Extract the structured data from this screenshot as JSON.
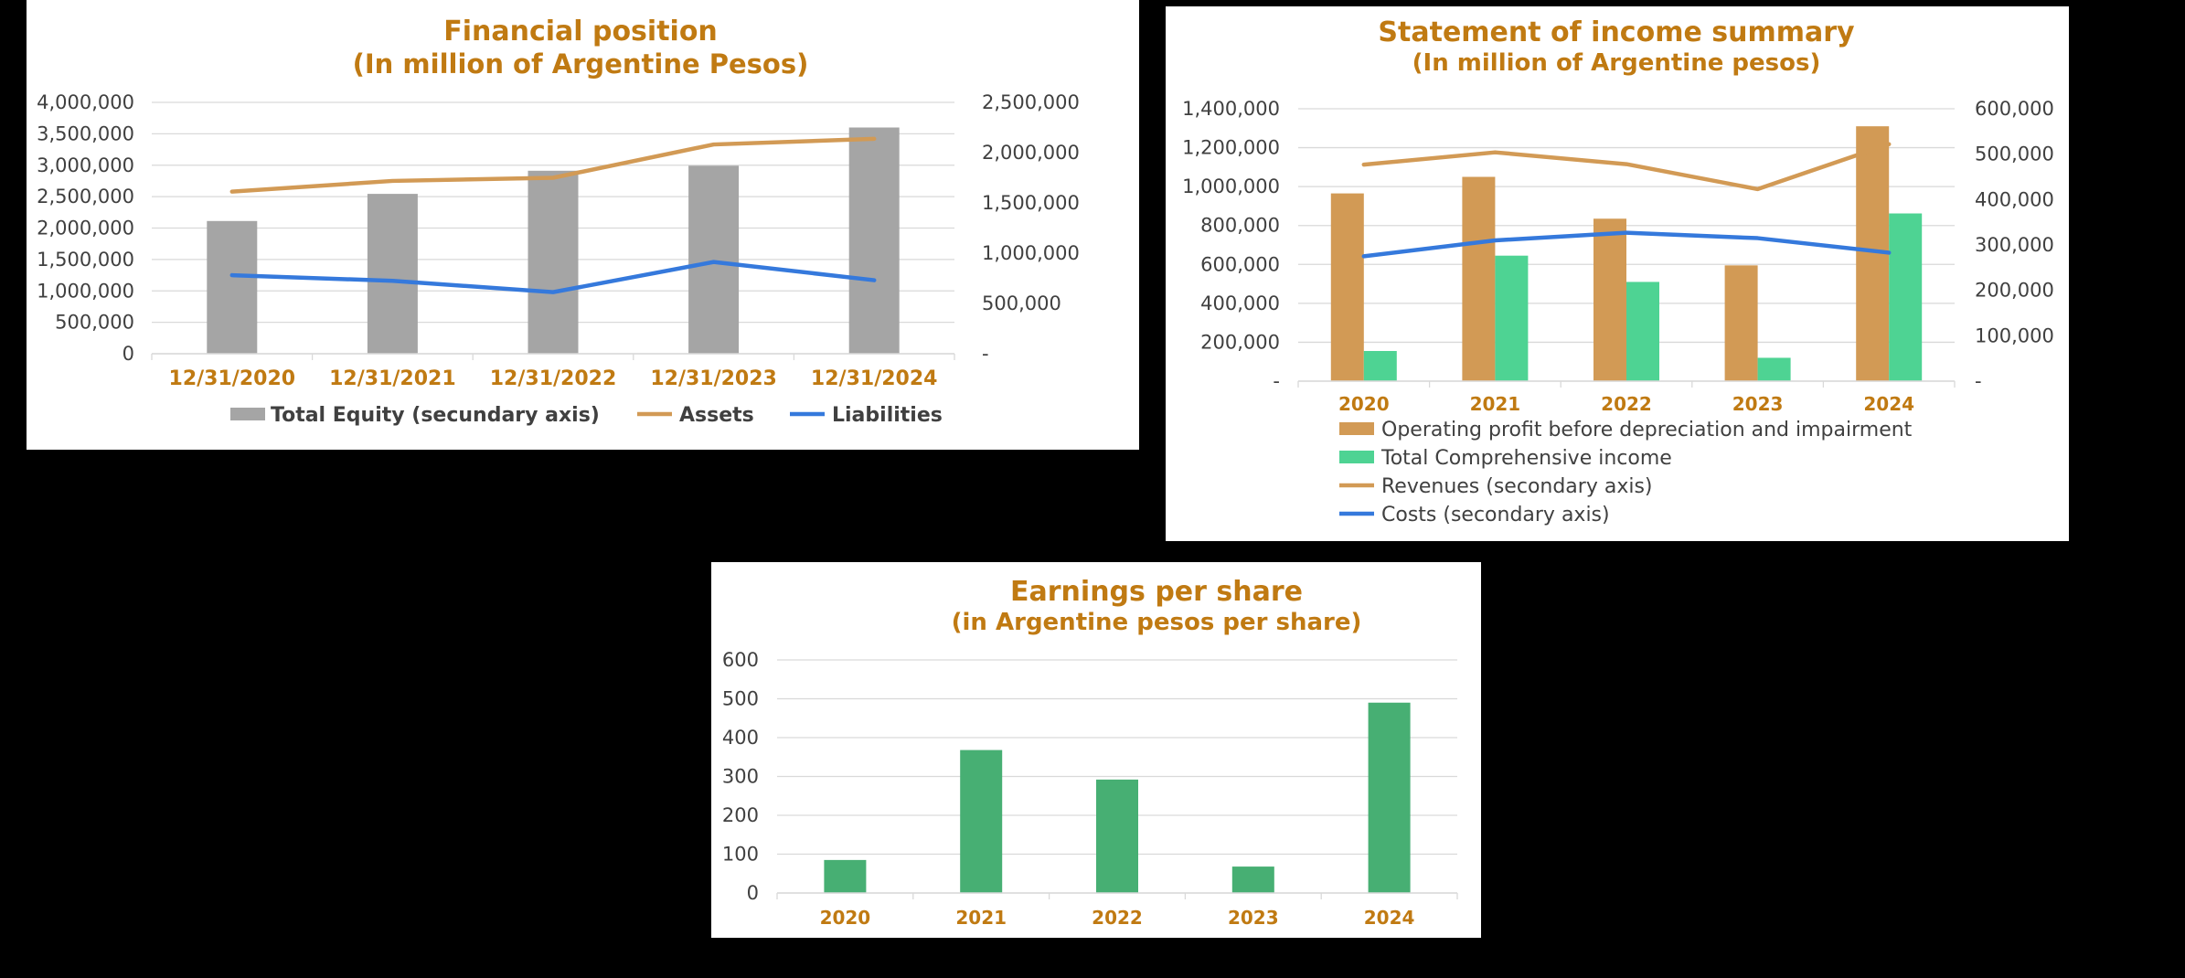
{
  "chart_data": [
    {
      "type": "bar",
      "title": "Financial position",
      "subtitle": "(In million of Argentine Pesos)",
      "categories": [
        "12/31/2020",
        "12/31/2021",
        "12/31/2022",
        "12/31/2023",
        "12/31/2024"
      ],
      "ylim": [
        0,
        4000000
      ],
      "y_ticks": [
        "0",
        "500,000",
        "1,000,000",
        "1,500,000",
        "2,000,000",
        "2,500,000",
        "3,000,000",
        "3,500,000",
        "4,000,000"
      ],
      "y2lim": [
        0,
        2500000
      ],
      "y2_ticks": [
        "-",
        "500,000",
        "1,000,000",
        "1,500,000",
        "2,000,000",
        "2,500,000"
      ],
      "grid": true,
      "legend_position": "bottom",
      "series": [
        {
          "name": "Total Equity (secundary axis)",
          "kind": "bar",
          "axis": "secondary",
          "color": "#A5A5A5",
          "values": [
            1320000,
            1590000,
            1820000,
            1870000,
            2250000
          ]
        },
        {
          "name": "Assets",
          "kind": "line",
          "axis": "primary",
          "color": "#D29A55",
          "values": [
            2580000,
            2750000,
            2800000,
            3330000,
            3420000
          ]
        },
        {
          "name": "Liabilities",
          "kind": "line",
          "axis": "primary",
          "color": "#3579DC",
          "values": [
            1250000,
            1160000,
            980000,
            1460000,
            1170000
          ]
        }
      ]
    },
    {
      "type": "bar",
      "title": "Statement of income summary",
      "subtitle": "(In million of Argentine pesos)",
      "categories": [
        "2020",
        "2021",
        "2022",
        "2023",
        "2024"
      ],
      "ylim": [
        0,
        1400000
      ],
      "y_ticks": [
        "-",
        "200,000",
        "400,000",
        "600,000",
        "800,000",
        "1,000,000",
        "1,200,000",
        "1,400,000"
      ],
      "y2lim": [
        0,
        600000
      ],
      "y2_ticks": [
        "-",
        "100,000",
        "200,000",
        "300,000",
        "400,000",
        "500,000",
        "600,000"
      ],
      "grid": true,
      "legend_position": "bottom",
      "series": [
        {
          "name": "Operating profit before depreciation and impairment",
          "kind": "bar",
          "axis": "primary",
          "color": "#D29A55",
          "values": [
            965000,
            1050000,
            835000,
            595000,
            1310000
          ]
        },
        {
          "name": "Total Comprehensive income",
          "kind": "bar",
          "axis": "primary",
          "color": "#4ED393",
          "values": [
            155000,
            645000,
            510000,
            120000,
            862000
          ]
        },
        {
          "name": "Revenues (secondary axis)",
          "kind": "line",
          "axis": "secondary",
          "color": "#D29A55",
          "values": [
            477000,
            504000,
            478000,
            423000,
            522000
          ]
        },
        {
          "name": "Costs (secondary axis)",
          "kind": "line",
          "axis": "secondary",
          "color": "#3579DC",
          "values": [
            275000,
            310000,
            327000,
            315000,
            283000
          ]
        }
      ]
    },
    {
      "type": "bar",
      "title": "Earnings per share",
      "subtitle": "(in Argentine pesos per share)",
      "categories": [
        "2020",
        "2021",
        "2022",
        "2023",
        "2024"
      ],
      "ylim": [
        0,
        600
      ],
      "y_ticks": [
        "0",
        "100",
        "200",
        "300",
        "400",
        "500",
        "600"
      ],
      "grid": true,
      "series": [
        {
          "name": "",
          "kind": "bar",
          "axis": "primary",
          "color": "#47AF73",
          "values": [
            85,
            368,
            292,
            68,
            490
          ]
        }
      ]
    }
  ]
}
